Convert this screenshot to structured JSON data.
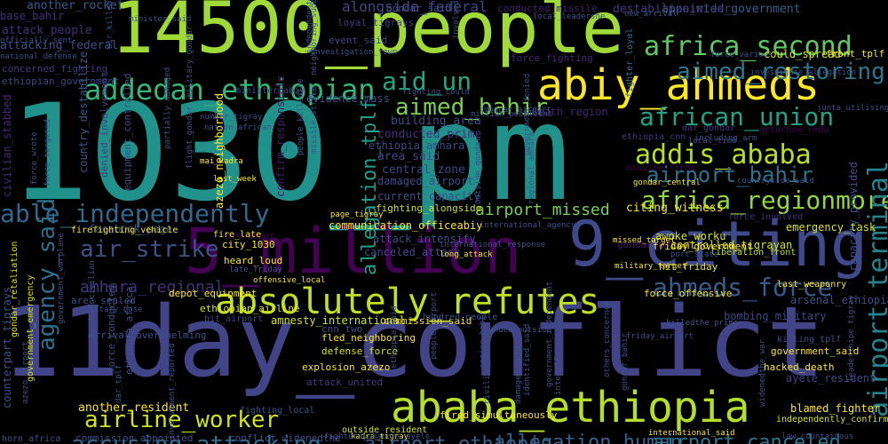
{
  "words": [
    {
      "text": "1030_pm",
      "color": "#21918c"
    },
    {
      "text": "11day_conflict",
      "color": "#414487"
    },
    {
      "text": "14500_people",
      "color": "#a0da39"
    },
    {
      "text": "5_million",
      "color": "#440154"
    },
    {
      "text": "9_citing",
      "color": "#3e4a89"
    },
    {
      "text": "abiy_ahmeds",
      "color": "#fde725"
    },
    {
      "text": "ababa_ethiopia",
      "color": "#b5de2b"
    },
    {
      "text": "absolutely_refutes",
      "color": "#c2df23"
    },
    {
      "text": "addedan_ethiopian",
      "color": "#35b779"
    },
    {
      "text": "africa_second",
      "color": "#5ec962"
    },
    {
      "text": "aimed_restoring",
      "color": "#2a788e"
    },
    {
      "text": "aid_un",
      "color": "#22a884"
    },
    {
      "text": "aimed_bahir",
      "color": "#7ad151"
    },
    {
      "text": "african_union",
      "color": "#20a386"
    },
    {
      "text": "addis_ababa",
      "color": "#b8de29"
    },
    {
      "text": "africa_regionmore",
      "color": "#90d743"
    },
    {
      "text": "airport_bahir",
      "color": "#2c728e"
    },
    {
      "text": "able_independently",
      "color": "#31688e"
    },
    {
      "text": "air_strike",
      "color": "#3b528b"
    },
    {
      "text": "ahmeds_force",
      "color": "#365c8d"
    },
    {
      "text": "airport_terminal",
      "color": "#26828e"
    },
    {
      "text": "agency_said",
      "color": "#2e6e8e"
    },
    {
      "text": "airline_worker",
      "color": "#d2e21b"
    },
    {
      "text": "accusing_attacking",
      "color": "#2d708e"
    },
    {
      "text": "airport_ethiopia",
      "color": "#34608d"
    },
    {
      "text": "allegation_human",
      "color": "#34618d"
    },
    {
      "text": "airport_canceled",
      "color": "#2a768e"
    },
    {
      "text": "allegation_tplf",
      "color": "#1f9e89"
    },
    {
      "text": "airport_missed",
      "color": "#75d054"
    },
    {
      "text": "amhara_regional",
      "color": "#46327e"
    },
    {
      "text": "alongside_federal",
      "color": "#3f4788"
    },
    {
      "text": "another_rocket",
      "color": "#355f8d"
    },
    {
      "text": "base_bahir",
      "color": "#46307e"
    },
    {
      "text": "attack_people",
      "color": "#472d7b"
    },
    {
      "text": "attacking_federal",
      "color": "#3b518b"
    },
    {
      "text": "concerned_fighting",
      "color": "#443a83"
    },
    {
      "text": "ethiopian_government",
      "color": "#3f4889"
    },
    {
      "text": "civilian_stabbed",
      "color": "#482878"
    },
    {
      "text": "country_destabilize",
      "color": "#38588c"
    },
    {
      "text": "equipment_controlled",
      "color": "#3e4c8a"
    },
    {
      "text": "denied_involvement",
      "color": "#433e85"
    },
    {
      "text": "confirm_responsible",
      "color": "#481769"
    },
    {
      "text": "azezo_neighborhood",
      "color": "#fde725"
    },
    {
      "text": "appointed_government",
      "color": "#355e8d"
    },
    {
      "text": "destabilize_wider",
      "color": "#453882"
    },
    {
      "text": "conducted_missile",
      "color": "#481f70"
    },
    {
      "text": "gondar_said",
      "color": "#3a538b"
    },
    {
      "text": "loyal_tigrays",
      "color": "#433d84"
    },
    {
      "text": "event_said",
      "color": "#3f4889"
    },
    {
      "text": "could_spread",
      "color": "#d8e219"
    },
    {
      "text": "front_tplf",
      "color": "#fde725"
    },
    {
      "text": "fighter_loyal",
      "color": "#2c738e"
    },
    {
      "text": "force_fighting",
      "color": "#482475"
    },
    {
      "text": "evidence_mass",
      "color": "#3b518b"
    },
    {
      "text": "minister_abiy",
      "color": "#3e4a89"
    },
    {
      "text": "building_area",
      "color": "#3c4f8a"
    },
    {
      "text": "conducted_prime",
      "color": "#46337f"
    },
    {
      "text": "ethiopia_amhara",
      "color": "#3f4889"
    },
    {
      "text": "area_said",
      "color": "#3f4788"
    },
    {
      "text": "central_zone",
      "color": "#404688"
    },
    {
      "text": "damaged_airport",
      "color": "#3d4e8a"
    },
    {
      "text": "current_capacity",
      "color": "#3b528b"
    },
    {
      "text": "fighting_alongside",
      "color": "#d0e11c"
    },
    {
      "text": "death_region",
      "color": "#482173"
    },
    {
      "text": "ethiopia_cnn",
      "color": "#443b84"
    },
    {
      "text": "gondar_amhara",
      "color": "#471365"
    },
    {
      "text": "citing_witness",
      "color": "#fde725"
    },
    {
      "text": "missile_fired",
      "color": "#440154"
    },
    {
      "text": "force_involved",
      "color": "#46307e"
    },
    {
      "text": "dar_gondar",
      "color": "#46327e"
    },
    {
      "text": "getachew_reda",
      "color": "#440154"
    },
    {
      "text": "capacity_provided",
      "color": "#3c508b"
    },
    {
      "text": "awoke_worku",
      "color": "#d5e21a"
    },
    {
      "text": "controlled_tigrayan",
      "color": "#d2e21b"
    },
    {
      "text": "emergency_task",
      "color": "#d8e219"
    },
    {
      "text": "friday_government",
      "color": "#fde725"
    },
    {
      "text": "liberation_front",
      "color": "#bddf26"
    },
    {
      "text": "hit_friday",
      "color": "#e5e419"
    },
    {
      "text": "force_offensive",
      "color": "#fde725"
    },
    {
      "text": "last_weaponry",
      "color": "#fde725"
    },
    {
      "text": "arsenal_ethiopian",
      "color": "#3b528b"
    },
    {
      "text": "bombing_military",
      "color": "#3f4788"
    },
    {
      "text": "killing_tplf",
      "color": "#3b528b"
    },
    {
      "text": "government_said",
      "color": "#fde725"
    },
    {
      "text": "hacked_death",
      "color": "#fde725"
    },
    {
      "text": "ayele_resident",
      "color": "#414487"
    },
    {
      "text": "blamed_fighter",
      "color": "#fde725"
    },
    {
      "text": "independently_confirm",
      "color": "#d8e219"
    },
    {
      "text": "facebook_page",
      "color": "#3b528b"
    },
    {
      "text": "communication_officeabiy",
      "color": "#fde725"
    },
    {
      "text": "arm_depot",
      "color": "#440154"
    },
    {
      "text": "city_1030",
      "color": "#fde725"
    },
    {
      "text": "attack_intensify",
      "color": "#3c4f8a"
    },
    {
      "text": "canceled_attack",
      "color": "#3e4c8a"
    },
    {
      "text": "heard_loud",
      "color": "#fde725"
    },
    {
      "text": "depot_equipment",
      "color": "#fde725"
    },
    {
      "text": "ethiopian_airline",
      "color": "#d8e219"
    },
    {
      "text": "arrival_overwhelming",
      "color": "#3b528b"
    },
    {
      "text": "firefighting_vehicle",
      "color": "#fde725"
    },
    {
      "text": "area_sealed",
      "color": "#3b528b"
    },
    {
      "text": "amnesty_international",
      "color": "#d2e21b"
    },
    {
      "text": "commission_said",
      "color": "#fde725"
    },
    {
      "text": "hundred_people",
      "color": "#3b528b"
    },
    {
      "text": "hit_airport",
      "color": "#3f4788"
    },
    {
      "text": "cnn_two",
      "color": "#3b528b"
    },
    {
      "text": "fled_neighboring",
      "color": "#fde725"
    },
    {
      "text": "defense_force",
      "color": "#d8e219"
    },
    {
      "text": "explosion_azezo",
      "color": "#fde725"
    },
    {
      "text": "attack_united",
      "color": "#443a83"
    },
    {
      "text": "another_resident",
      "color": "#fde725"
    },
    {
      "text": "outside_resident",
      "color": "#d8e219"
    },
    {
      "text": "fired_simultaneously",
      "color": "#fde725"
    },
    {
      "text": "conflict_widenedthe",
      "color": "#3b528b"
    },
    {
      "text": "commission_appointed",
      "color": "#3b528b"
    },
    {
      "text": "horn_africa",
      "color": "#3b528b"
    },
    {
      "text": "counterpart_tigrays",
      "color": "#3b528b"
    },
    {
      "text": "gondar_retaliation",
      "color": "#d8e219"
    },
    {
      "text": "government_emergency",
      "color": "#d8e219"
    },
    {
      "text": "force_conducted",
      "color": "#3b528b"
    },
    {
      "text": "ethiopia_africa",
      "color": "#3b528b"
    },
    {
      "text": "fire_late",
      "color": "#fde725"
    },
    {
      "text": "last_week",
      "color": "#fde725"
    },
    {
      "text": "mai_kadra",
      "color": "#fde725"
    },
    {
      "text": "page_tigray",
      "color": "#fde725"
    },
    {
      "text": "fighting_local",
      "color": "#3b528b"
    },
    {
      "text": "international_said",
      "color": "#fde725"
    },
    {
      "text": "law_countainous",
      "color": "#3b528b"
    },
    {
      "text": "kadra_tigray",
      "color": "#fde725"
    },
    {
      "text": "fighterayohannes_ayele",
      "color": "#3b528b"
    },
    {
      "text": "landed_outside",
      "color": "#3b528b"
    },
    {
      "text": "missed_target",
      "color": "#fde725"
    },
    {
      "text": "gondar_central",
      "color": "#fde725"
    },
    {
      "text": "military_target",
      "color": "#fde725"
    },
    {
      "text": "military_base",
      "color": "#3b528b"
    },
    {
      "text": "offensive_local",
      "color": "#fde725"
    },
    {
      "text": "late_friday",
      "color": "#3b528b"
    },
    {
      "text": "local_time",
      "color": "#3b528b"
    },
    {
      "text": "junta_utilising",
      "color": "#3b528b"
    },
    {
      "text": "including_arm",
      "color": "#3b528b"
    },
    {
      "text": "force_various",
      "color": "#3b528b"
    },
    {
      "text": "new_arrival",
      "color": "#3b528b"
    },
    {
      "text": "local_leadershe",
      "color": "#3b528b"
    },
    {
      "text": "minister_said",
      "color": "#3b528b"
    },
    {
      "text": "officially_sent",
      "color": "#3b528b"
    },
    {
      "text": "national_defense",
      "color": "#3b528b"
    },
    {
      "text": "force_wrote",
      "color": "#3b528b"
    },
    {
      "text": "force_targeted",
      "color": "#3b528b"
    },
    {
      "text": "people_killedthe",
      "color": "#3b528b"
    },
    {
      "text": "missile_strike",
      "color": "#3b528b"
    },
    {
      "text": "million_peopleone",
      "color": "#3b528b"
    },
    {
      "text": "investigate_allegation",
      "color": "#3b528b"
    },
    {
      "text": "partially_damaged",
      "color": "#3b528b"
    },
    {
      "text": "number_tigray",
      "color": "#3b528b"
    },
    {
      "text": "nation_african",
      "color": "#3b528b"
    },
    {
      "text": "independent_said",
      "color": "#3b528b"
    },
    {
      "text": "involved_tragic",
      "color": "#3b528b"
    },
    {
      "text": "government_denied",
      "color": "#3b528b"
    },
    {
      "text": "outside_gondar",
      "color": "#3b528b"
    },
    {
      "text": "identified_said",
      "color": "#3b528b"
    },
    {
      "text": "gondar_bahir",
      "color": "#3b528b"
    },
    {
      "text": "government_independent",
      "color": "#3b528b"
    },
    {
      "text": "leadershipe_tigray",
      "color": "#3b528b"
    },
    {
      "text": "intensify_getachew",
      "color": "#3b528b"
    },
    {
      "text": "damaged_said",
      "color": "#3b528b"
    },
    {
      "text": "civilian_died",
      "color": "#3b528b"
    },
    {
      "text": "hundred_civilian",
      "color": "#3b528b"
    },
    {
      "text": "dar_tplf",
      "color": "#3b528b"
    },
    {
      "text": "involvement_reported",
      "color": "#3b528b"
    },
    {
      "text": "killedthe_prime",
      "color": "#3b528b"
    },
    {
      "text": "friday_airport",
      "color": "#3b528b"
    },
    {
      "text": "others_concerned",
      "color": "#3b528b"
    },
    {
      "text": "international_response",
      "color": "#3b528b"
    },
    {
      "text": "long_attack",
      "color": "#fde725"
    },
    {
      "text": "fighting_could",
      "color": "#3b528b"
    },
    {
      "text": "air_killed",
      "color": "#3b528b"
    },
    {
      "text": "neighboring_sudan",
      "color": "#3b528b"
    },
    {
      "text": "countryside_said",
      "color": "#3b528b"
    },
    {
      "text": "international_agency",
      "color": "#3b528b"
    },
    {
      "text": "azezo_airport",
      "color": "#3b528b"
    },
    {
      "text": "government_warplane",
      "color": "#3b528b"
    },
    {
      "text": "military_gondar",
      "color": "#3b528b"
    },
    {
      "text": "flight_gondar",
      "color": "#3b528b"
    },
    {
      "text": "ethiopia_said",
      "color": "#3b528b"
    },
    {
      "text": "people_airport",
      "color": "#3b528b"
    },
    {
      "text": "investigation_town",
      "color": "#3b528b"
    },
    {
      "text": "port_state",
      "color": "#3b528b"
    },
    {
      "text": "widenedthe_war",
      "color": "#3b528b"
    },
    {
      "text": "region_bahir",
      "color": "#3b528b"
    },
    {
      "text": "regional_amhara",
      "color": "#3b528b"
    },
    {
      "text": "gondar_airport",
      "color": "#3b528b"
    }
  ]
}
